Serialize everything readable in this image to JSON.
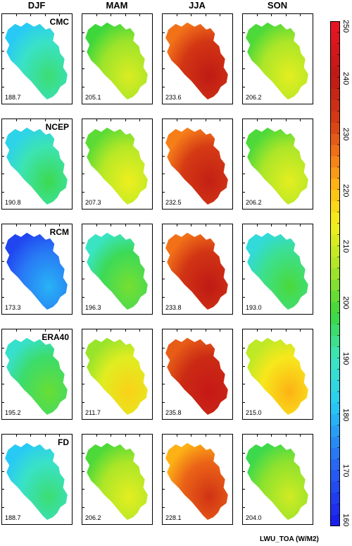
{
  "seasons": [
    "DJF",
    "MAM",
    "JJA",
    "SON"
  ],
  "datasets": [
    {
      "name": "CMC",
      "values": [
        188.7,
        205.1,
        233.6,
        206.2
      ],
      "labels": [
        "188.7",
        "205.1",
        "233.6",
        "206.2"
      ]
    },
    {
      "name": "NCEP",
      "values": [
        190.8,
        207.3,
        232.5,
        206.2
      ],
      "labels": [
        "190.8",
        "207.3",
        "232.5",
        "206.2"
      ]
    },
    {
      "name": "RCM",
      "values": [
        173.3,
        196.3,
        233.8,
        193.0
      ],
      "labels": [
        "173.3",
        "196.3",
        "233.8",
        "193.0"
      ]
    },
    {
      "name": "ERA40",
      "values": [
        195.2,
        211.7,
        235.8,
        215.0
      ],
      "labels": [
        "195.2",
        "211.7",
        "235.8",
        "215.0"
      ]
    },
    {
      "name": "FD",
      "values": [
        188.7,
        206.2,
        228.1,
        204.0
      ],
      "labels": [
        "188.7",
        "206.2",
        "228.1",
        "204.0"
      ]
    }
  ],
  "chart_data": {
    "type": "heatmap",
    "title": "",
    "columns": [
      "DJF",
      "MAM",
      "JJA",
      "SON"
    ],
    "rows": [
      "CMC",
      "NCEP",
      "RCM",
      "ERA40",
      "FD"
    ],
    "basin_mean_values": [
      [
        188.7,
        205.1,
        233.6,
        206.2
      ],
      [
        190.8,
        207.3,
        232.5,
        206.2
      ],
      [
        173.3,
        196.3,
        233.8,
        193.0
      ],
      [
        195.2,
        211.7,
        235.8,
        215.0
      ],
      [
        188.7,
        206.2,
        228.1,
        204.0
      ]
    ],
    "colorbar": {
      "min": 160,
      "max": 250,
      "step": 2,
      "tick_labels": [
        "160",
        "170",
        "180",
        "190",
        "200",
        "210",
        "220",
        "230",
        "240",
        "250"
      ],
      "unit_label": "LWU_TOA (W/M2)"
    }
  }
}
